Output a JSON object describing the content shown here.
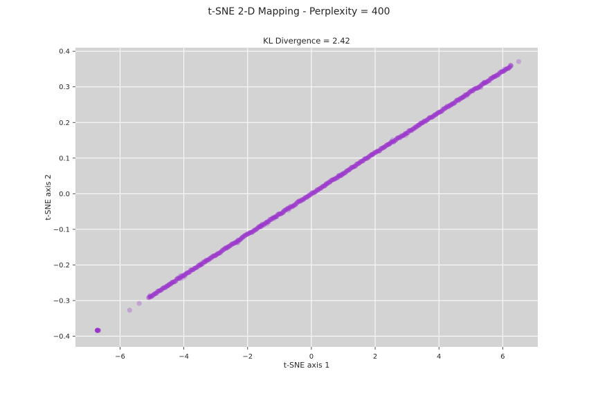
{
  "figure_title": "t-SNE 2-D Mapping - Perplexity = 400",
  "colors": {
    "plot_background": "#d3d3d3",
    "grid": "#ffffff",
    "point": "#9932CC"
  },
  "chart_data": {
    "type": "scatter",
    "title": "KL Divergence = 2.42",
    "xlabel": "t-SNE axis 1",
    "ylabel": "t-SNE axis 2",
    "xlim": [
      -7.4,
      7.1
    ],
    "ylim": [
      -0.43,
      0.41
    ],
    "xticks": [
      -6,
      -4,
      -2,
      0,
      2,
      4,
      6
    ],
    "xtick_labels": [
      "−6",
      "−4",
      "−2",
      "0",
      "2",
      "4",
      "6"
    ],
    "yticks": [
      -0.4,
      -0.3,
      -0.2,
      -0.1,
      0.0,
      0.1,
      0.2,
      0.3,
      0.4
    ],
    "ytick_labels": [
      "−0.4",
      "−0.3",
      "−0.2",
      "−0.1",
      "0.0",
      "0.1",
      "0.2",
      "0.3",
      "0.4"
    ],
    "grid": true,
    "slope": 0.0572,
    "main_band_x_range": [
      -5.1,
      6.3
    ],
    "outliers": [
      {
        "x": -6.7,
        "y": -0.383
      },
      {
        "x": -5.7,
        "y": -0.327
      },
      {
        "x": -5.4,
        "y": -0.308
      },
      {
        "x": 6.5,
        "y": 0.371
      }
    ]
  }
}
